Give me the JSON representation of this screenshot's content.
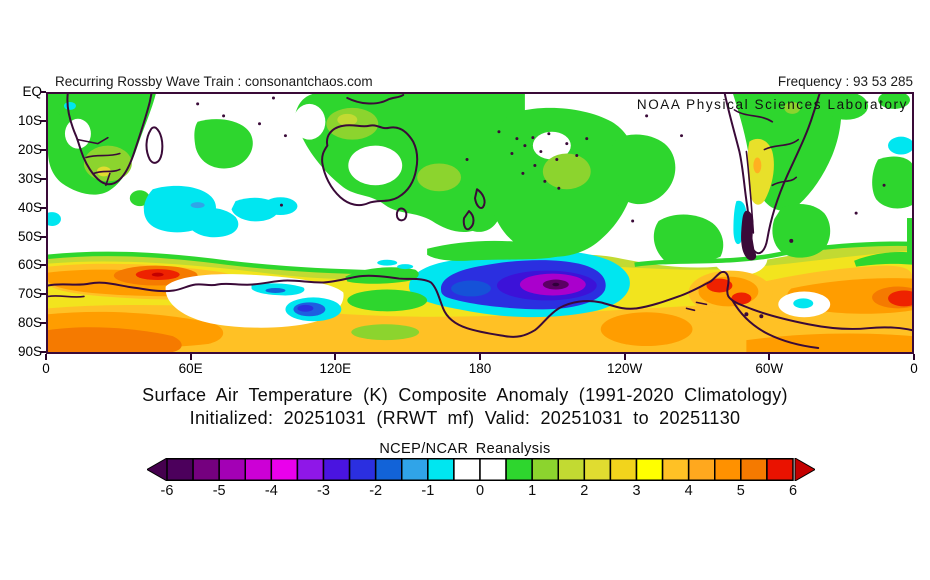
{
  "overlay": {
    "left_text": "Recurring Rossby Wave Train : consonantchaos.com",
    "right_text": "Frequency : 93 53 285"
  },
  "map": {
    "agency_label": "NOAA Physical Sciences Laboratory",
    "lat_labels": [
      "EQ",
      "10S",
      "20S",
      "30S",
      "40S",
      "50S",
      "60S",
      "70S",
      "80S",
      "90S"
    ],
    "lon_labels": [
      "0",
      "60E",
      "120E",
      "180",
      "120W",
      "60W",
      "0"
    ],
    "coastline_color": "#3a0a38"
  },
  "caption": {
    "title": "Surface Air Temperature (K) Composite Anomaly (1991-2020 Climatology)",
    "subtitle": "Initialized: 20251031 (RRWT mf) Valid: 20251031 to 20251130",
    "source_label": "NCEP/NCAR Reanalysis"
  },
  "colorbar": {
    "tick_labels": [
      "-6",
      "-5",
      "-4",
      "-3",
      "-2",
      "-1",
      "0",
      "1",
      "2",
      "3",
      "4",
      "5",
      "6"
    ],
    "left_arrow_color": "#45004e",
    "right_arrow_color": "#c40000",
    "segment_colors": [
      "#4c005c",
      "#75007f",
      "#a300b5",
      "#cc00d6",
      "#ea00ec",
      "#8f17e8",
      "#4a14e0",
      "#2b2fe0",
      "#1263d8",
      "#30a4e8",
      "#00e6f0",
      "#ffffff",
      "#ffffff",
      "#2ed62e",
      "#8cd42e",
      "#c2da32",
      "#e0dc30",
      "#f2d41c",
      "#ffff00",
      "#ffc125",
      "#ffa81e",
      "#ff9100",
      "#f57a00",
      "#ea1200"
    ]
  },
  "chart_data": {
    "type": "heatmap",
    "title": "Surface Air Temperature (K) Composite Anomaly (1991-2020 Climatology)",
    "subtitle": "Initialized: 20251031 (RRWT mf) Valid: 20251031 to 20251130",
    "source": "NCEP/NCAR Reanalysis",
    "units": "K",
    "x": {
      "label": "longitude",
      "ticks": [
        "0",
        "60E",
        "120E",
        "180",
        "120W",
        "60W",
        "0"
      ],
      "range_deg": [
        0,
        360
      ]
    },
    "y": {
      "label": "latitude",
      "ticks": [
        "EQ",
        "10S",
        "20S",
        "30S",
        "40S",
        "50S",
        "60S",
        "70S",
        "80S",
        "90S"
      ],
      "range_deg": [
        0,
        -90
      ]
    },
    "colorscale": {
      "min": -6,
      "max": 6,
      "step": 0.5,
      "colors": [
        "#4c005c",
        "#75007f",
        "#a300b5",
        "#cc00d6",
        "#ea00ec",
        "#8f17e8",
        "#4a14e0",
        "#2b2fe0",
        "#1263d8",
        "#30a4e8",
        "#00e6f0",
        "#ffffff",
        "#ffffff",
        "#2ed62e",
        "#8cd42e",
        "#c2da32",
        "#e0dc30",
        "#f2d41c",
        "#ffff00",
        "#ffc125",
        "#ffa81e",
        "#ff9100",
        "#f57a00",
        "#ea1200"
      ]
    },
    "features": [
      {
        "name": "circumpolar warm band",
        "lat": "52S-90S",
        "lon": "all",
        "value_K": "+1 to +4"
      },
      {
        "name": "warm core southern Indian Ocean sector",
        "lat": "63S-70S",
        "lon": "25E-75E",
        "value_K": "+5 to +6"
      },
      {
        "name": "warm core Antarctic Peninsula",
        "lat": "62S-72S",
        "lon": "85W-60W",
        "value_K": "+5 to +6"
      },
      {
        "name": "warm core near Greenwich meridian",
        "lat": "68S-75S",
        "lon": "355E-360E",
        "value_K": "+5 to +6"
      },
      {
        "name": "deep cold blob Ross Sea / South Pacific",
        "lat": "60S-77S",
        "lon": "170E-145W",
        "value_K": "-2 to -5.5 (purple core)"
      },
      {
        "name": "cold spot near 105E",
        "lat": "72S-78S",
        "lon": "100E-120E",
        "value_K": "-1.5 to -2.5"
      },
      {
        "name": "cold spot near 65W",
        "lat": "78S-82S",
        "lon": "70W-55W",
        "value_K": "-1"
      },
      {
        "name": "cool patches southern Indian Ocean",
        "lat": "38S-50S",
        "lon": "10E-100E",
        "value_K": "-0.5 to -1"
      },
      {
        "name": "mild warm anomalies",
        "regions": "southern Africa, Australia, South Pacific, South America, South Atlantic",
        "value_K": "+0.5 to +1.5"
      }
    ]
  }
}
